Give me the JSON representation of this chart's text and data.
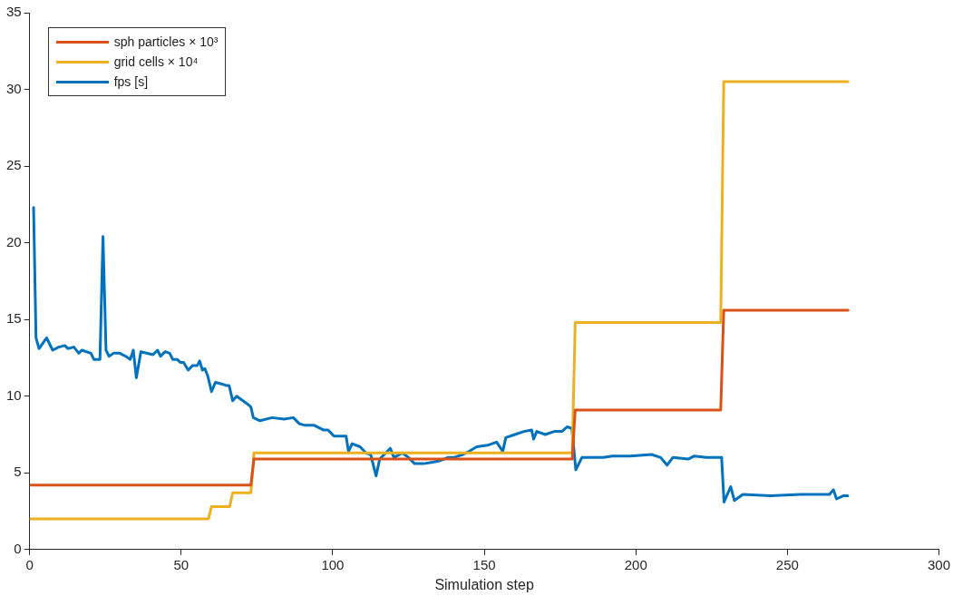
{
  "chart_data": {
    "type": "line",
    "xlabel": "Simulation step",
    "xlim": [
      0,
      300
    ],
    "xticks": [
      0,
      50,
      100,
      150,
      200,
      250,
      300
    ],
    "ylim": [
      0,
      35
    ],
    "yticks": [
      0,
      5,
      10,
      15,
      20,
      25,
      30,
      35
    ],
    "grid": false,
    "legend": "top left",
    "marker": "none",
    "line_style": "solid",
    "series": [
      {
        "name": "sph particles × 10³",
        "color": "#d95319",
        "x": [
          0,
          73,
          74,
          179,
          180,
          228,
          229,
          270
        ],
        "values": [
          4.2,
          4.2,
          5.9,
          5.9,
          9.1,
          9.1,
          15.6,
          15.6
        ]
      },
      {
        "name": "grid cells × 10⁴",
        "color": "#edb120",
        "x": [
          0,
          59,
          60,
          66,
          67,
          73,
          74,
          179,
          180,
          228,
          229,
          270
        ],
        "values": [
          2.0,
          2.0,
          2.8,
          2.8,
          3.7,
          3.7,
          6.3,
          6.3,
          14.8,
          14.8,
          30.5,
          30.5
        ]
      },
      {
        "name": "fps [s]",
        "color": "#0072bd",
        "x": [
          1.3,
          2.1,
          3.1,
          5.6,
          7.6,
          9.6,
          11.6,
          12.6,
          14.6,
          16.2,
          17.2,
          20.2,
          21.2,
          23.2,
          24.2,
          25.2,
          26.2,
          27.7,
          29.7,
          31.7,
          33.2,
          34.2,
          35.2,
          36.7,
          40.7,
          42.2,
          43.2,
          44.7,
          46.2,
          47.2,
          48.7,
          49.7,
          50.8,
          52.3,
          53.8,
          55.3,
          56.1,
          57,
          57.8,
          58.8,
          60,
          61.3,
          63.3,
          64.8,
          65.8,
          67,
          68.3,
          71.8,
          73,
          73.8,
          76,
          80,
          84,
          87,
          89,
          90.9,
          93.9,
          96.9,
          98.4,
          100.4,
          102.9,
          104.4,
          105.2,
          106.4,
          109,
          111,
          112.5,
          114.3,
          115.5,
          117.5,
          119,
          120.2,
          123,
          125,
          127,
          130,
          133,
          135.5,
          138,
          140,
          143,
          145,
          147.5,
          151.1,
          154.1,
          156.1,
          157.1,
          160.1,
          163.1,
          165.6,
          166.3,
          167.3,
          170.1,
          173.1,
          175.6,
          177.3,
          178.9,
          180.2,
          182.2,
          185.2,
          189.2,
          192.2,
          198.2,
          205.2,
          208.2,
          210.3,
          212.2,
          217.3,
          219.3,
          223.3,
          228.3,
          229.1,
          231.3,
          232.5,
          235.3,
          244.4,
          254.4,
          263.9,
          265.2,
          266.2,
          268.4,
          269.9
        ],
        "values": [
          22.3,
          13.8,
          13.1,
          13.8,
          13.0,
          13.2,
          13.3,
          13.1,
          13.2,
          12.8,
          13.0,
          12.8,
          12.4,
          12.4,
          20.4,
          13.0,
          12.6,
          12.8,
          12.8,
          12.6,
          12.4,
          13.0,
          11.2,
          12.9,
          12.7,
          13.0,
          12.6,
          12.9,
          12.8,
          12.4,
          12.4,
          12.2,
          12.2,
          11.7,
          12.0,
          12.0,
          12.3,
          11.7,
          11.8,
          11.3,
          10.3,
          10.9,
          10.8,
          10.7,
          10.7,
          9.7,
          10.0,
          9.5,
          9.3,
          8.6,
          8.4,
          8.6,
          8.5,
          8.6,
          8.2,
          8.1,
          8.1,
          7.8,
          7.8,
          7.4,
          7.4,
          7.4,
          6.4,
          6.9,
          6.7,
          6.3,
          6.2,
          4.8,
          5.9,
          6.3,
          6.6,
          6.0,
          6.3,
          6.0,
          5.6,
          5.6,
          5.7,
          5.8,
          6.0,
          6.0,
          6.2,
          6.4,
          6.7,
          6.8,
          7.0,
          6.4,
          7.3,
          7.5,
          7.7,
          7.8,
          7.2,
          7.7,
          7.5,
          7.7,
          7.7,
          8.0,
          7.9,
          5.2,
          6.0,
          6.0,
          6.0,
          6.1,
          6.1,
          6.2,
          6.0,
          5.5,
          6.0,
          5.9,
          6.1,
          6.0,
          6.0,
          3.1,
          4.1,
          3.2,
          3.6,
          3.5,
          3.6,
          3.6,
          3.9,
          3.3,
          3.5,
          3.5
        ]
      }
    ]
  }
}
